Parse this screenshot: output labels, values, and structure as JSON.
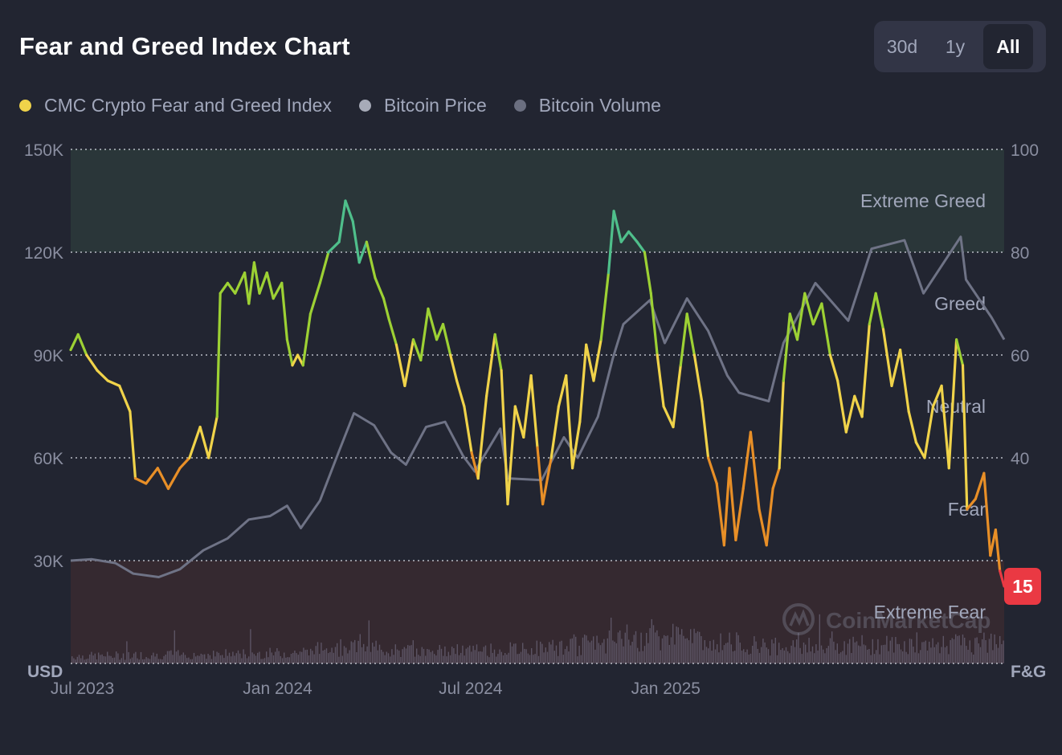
{
  "header": {
    "title": "Fear and Greed Index Chart"
  },
  "range_selector": [
    {
      "label": "30d",
      "active": false
    },
    {
      "label": "1y",
      "active": false
    },
    {
      "label": "All",
      "active": true
    }
  ],
  "legend": [
    {
      "label": "CMC Crypto Fear and Greed Index",
      "color": "#f0d34a"
    },
    {
      "label": "Bitcoin Price",
      "color": "#a7abb8"
    },
    {
      "label": "Bitcoin Volume",
      "color": "#6b6f80"
    }
  ],
  "watermark": "CoinMarketCap",
  "colors": {
    "background": "#222531",
    "extreme_greed_band": "#2a3639",
    "extreme_fear_band": "#352930",
    "extreme_greed": "#4fbf8b",
    "greed": "#9dd134",
    "neutral": "#f0d34a",
    "fear": "#e88f27",
    "extreme_fear": "#ea3943",
    "price_line": "#6f7386",
    "volume_bars": "#5c5464"
  },
  "chart_data": {
    "type": "line",
    "left_axis": {
      "unit_label": "USD",
      "ticks": [
        "150K",
        "120K",
        "90K",
        "60K",
        "30K"
      ],
      "ylim": [
        0,
        150000
      ]
    },
    "right_axis": {
      "unit_label": "F&G",
      "ticks": [
        "100",
        "80",
        "60",
        "40"
      ],
      "ylim": [
        0,
        100
      ]
    },
    "x_ticks": [
      "Jul 2023",
      "Jan 2024",
      "Jul 2024",
      "Jan 2025"
    ],
    "x_tick_dates": [
      "2023-07-01",
      "2024-01-01",
      "2024-07-01",
      "2025-01-01"
    ],
    "x_range": [
      "2023-06-20",
      "2025-11-16"
    ],
    "zones": [
      {
        "label": "Extreme Greed",
        "range": [
          80,
          100
        ]
      },
      {
        "label": "Greed",
        "range": [
          60,
          80
        ]
      },
      {
        "label": "Neutral",
        "range": [
          40,
          60
        ]
      },
      {
        "label": "Fear",
        "range": [
          20,
          40
        ]
      },
      {
        "label": "Extreme Fear",
        "range": [
          0,
          20
        ]
      }
    ],
    "current_value": "15",
    "grid": true,
    "series": [
      {
        "name": "CMC Crypto Fear and Greed Index",
        "axis": "right",
        "points": [
          [
            "2023-06-20",
            61
          ],
          [
            "2023-06-27",
            64
          ],
          [
            "2023-07-05",
            60
          ],
          [
            "2023-07-15",
            57
          ],
          [
            "2023-07-25",
            55
          ],
          [
            "2023-08-05",
            54
          ],
          [
            "2023-08-15",
            49
          ],
          [
            "2023-08-20",
            36
          ],
          [
            "2023-08-30",
            35
          ],
          [
            "2023-09-10",
            38
          ],
          [
            "2023-09-20",
            34
          ],
          [
            "2023-10-01",
            38
          ],
          [
            "2023-10-10",
            40
          ],
          [
            "2023-10-20",
            46
          ],
          [
            "2023-10-28",
            40
          ],
          [
            "2023-11-05",
            48
          ],
          [
            "2023-11-08",
            72
          ],
          [
            "2023-11-15",
            74
          ],
          [
            "2023-11-22",
            72
          ],
          [
            "2023-12-01",
            76
          ],
          [
            "2023-12-05",
            70
          ],
          [
            "2023-12-10",
            78
          ],
          [
            "2023-12-15",
            72
          ],
          [
            "2023-12-22",
            76
          ],
          [
            "2023-12-28",
            71
          ],
          [
            "2024-01-05",
            74
          ],
          [
            "2024-01-10",
            63
          ],
          [
            "2024-01-15",
            58
          ],
          [
            "2024-01-20",
            60
          ],
          [
            "2024-01-25",
            58
          ],
          [
            "2024-02-01",
            68
          ],
          [
            "2024-02-10",
            74
          ],
          [
            "2024-02-18",
            80
          ],
          [
            "2024-02-28",
            82
          ],
          [
            "2024-03-05",
            90
          ],
          [
            "2024-03-12",
            86
          ],
          [
            "2024-03-18",
            78
          ],
          [
            "2024-03-25",
            82
          ],
          [
            "2024-04-02",
            75
          ],
          [
            "2024-04-10",
            71
          ],
          [
            "2024-04-15",
            67
          ],
          [
            "2024-04-22",
            62
          ],
          [
            "2024-04-30",
            54
          ],
          [
            "2024-05-08",
            63
          ],
          [
            "2024-05-15",
            59
          ],
          [
            "2024-05-22",
            69
          ],
          [
            "2024-05-30",
            63
          ],
          [
            "2024-06-05",
            66
          ],
          [
            "2024-06-12",
            60
          ],
          [
            "2024-06-18",
            55
          ],
          [
            "2024-06-25",
            50
          ],
          [
            "2024-07-02",
            41
          ],
          [
            "2024-07-08",
            36
          ],
          [
            "2024-07-16",
            52
          ],
          [
            "2024-07-24",
            64
          ],
          [
            "2024-07-30",
            57
          ],
          [
            "2024-08-05",
            31
          ],
          [
            "2024-08-12",
            50
          ],
          [
            "2024-08-20",
            44
          ],
          [
            "2024-08-27",
            56
          ],
          [
            "2024-09-02",
            42
          ],
          [
            "2024-09-07",
            31
          ],
          [
            "2024-09-15",
            40
          ],
          [
            "2024-09-22",
            50
          ],
          [
            "2024-09-29",
            56
          ],
          [
            "2024-10-05",
            38
          ],
          [
            "2024-10-12",
            47
          ],
          [
            "2024-10-18",
            62
          ],
          [
            "2024-10-25",
            55
          ],
          [
            "2024-11-01",
            63
          ],
          [
            "2024-11-08",
            76
          ],
          [
            "2024-11-13",
            88
          ],
          [
            "2024-11-20",
            82
          ],
          [
            "2024-11-27",
            84
          ],
          [
            "2024-12-05",
            82
          ],
          [
            "2024-12-12",
            80
          ],
          [
            "2024-12-18",
            72
          ],
          [
            "2024-12-24",
            60
          ],
          [
            "2024-12-30",
            50
          ],
          [
            "2025-01-08",
            46
          ],
          [
            "2025-01-15",
            58
          ],
          [
            "2025-01-21",
            68
          ],
          [
            "2025-01-28",
            60
          ],
          [
            "2025-02-04",
            51
          ],
          [
            "2025-02-10",
            40
          ],
          [
            "2025-02-18",
            35
          ],
          [
            "2025-02-25",
            23
          ],
          [
            "2025-03-02",
            38
          ],
          [
            "2025-03-08",
            24
          ],
          [
            "2025-03-15",
            34
          ],
          [
            "2025-03-22",
            45
          ],
          [
            "2025-03-30",
            30
          ],
          [
            "2025-04-06",
            23
          ],
          [
            "2025-04-12",
            34
          ],
          [
            "2025-04-18",
            38
          ],
          [
            "2025-04-22",
            55
          ],
          [
            "2025-04-28",
            68
          ],
          [
            "2025-05-05",
            63
          ],
          [
            "2025-05-12",
            72
          ],
          [
            "2025-05-20",
            66
          ],
          [
            "2025-05-28",
            70
          ],
          [
            "2025-06-05",
            60
          ],
          [
            "2025-06-12",
            55
          ],
          [
            "2025-06-20",
            45
          ],
          [
            "2025-06-28",
            52
          ],
          [
            "2025-07-05",
            48
          ],
          [
            "2025-07-12",
            66
          ],
          [
            "2025-07-18",
            72
          ],
          [
            "2025-07-25",
            65
          ],
          [
            "2025-08-02",
            54
          ],
          [
            "2025-08-10",
            61
          ],
          [
            "2025-08-18",
            49
          ],
          [
            "2025-08-25",
            43
          ],
          [
            "2025-09-02",
            40
          ],
          [
            "2025-09-10",
            50
          ],
          [
            "2025-09-18",
            54
          ],
          [
            "2025-09-25",
            38
          ],
          [
            "2025-10-02",
            63
          ],
          [
            "2025-10-08",
            58
          ],
          [
            "2025-10-12",
            30
          ],
          [
            "2025-10-20",
            32
          ],
          [
            "2025-10-28",
            37
          ],
          [
            "2025-11-03",
            21
          ],
          [
            "2025-11-08",
            26
          ],
          [
            "2025-11-12",
            18
          ],
          [
            "2025-11-16",
            15
          ]
        ]
      },
      {
        "name": "Bitcoin Price",
        "axis": "left",
        "points": [
          [
            "2023-06-20",
            30000
          ],
          [
            "2023-07-10",
            30400
          ],
          [
            "2023-08-01",
            29300
          ],
          [
            "2023-08-18",
            26200
          ],
          [
            "2023-09-11",
            25200
          ],
          [
            "2023-10-01",
            27500
          ],
          [
            "2023-10-23",
            33000
          ],
          [
            "2023-11-15",
            36500
          ],
          [
            "2023-12-05",
            42000
          ],
          [
            "2023-12-25",
            43000
          ],
          [
            "2024-01-10",
            46000
          ],
          [
            "2024-01-23",
            39500
          ],
          [
            "2024-02-10",
            47500
          ],
          [
            "2024-02-28",
            62000
          ],
          [
            "2024-03-13",
            73000
          ],
          [
            "2024-04-01",
            69500
          ],
          [
            "2024-04-17",
            61500
          ],
          [
            "2024-05-01",
            58000
          ],
          [
            "2024-05-20",
            69000
          ],
          [
            "2024-06-07",
            70500
          ],
          [
            "2024-06-24",
            60500
          ],
          [
            "2024-07-05",
            56000
          ],
          [
            "2024-07-29",
            68500
          ],
          [
            "2024-08-05",
            54000
          ],
          [
            "2024-09-06",
            53500
          ],
          [
            "2024-09-27",
            66000
          ],
          [
            "2024-10-10",
            60000
          ],
          [
            "2024-10-29",
            72000
          ],
          [
            "2024-11-12",
            89000
          ],
          [
            "2024-11-22",
            99000
          ],
          [
            "2024-12-17",
            106000
          ],
          [
            "2024-12-31",
            93500
          ],
          [
            "2025-01-21",
            106500
          ],
          [
            "2025-02-10",
            97000
          ],
          [
            "2025-02-28",
            84000
          ],
          [
            "2025-03-11",
            79000
          ],
          [
            "2025-04-08",
            76500
          ],
          [
            "2025-04-22",
            93500
          ],
          [
            "2025-05-22",
            111000
          ],
          [
            "2025-06-22",
            100000
          ],
          [
            "2025-07-14",
            121000
          ],
          [
            "2025-08-14",
            123500
          ],
          [
            "2025-09-01",
            108000
          ],
          [
            "2025-10-06",
            124500
          ],
          [
            "2025-10-11",
            112000
          ],
          [
            "2025-11-04",
            101000
          ],
          [
            "2025-11-16",
            94500
          ]
        ]
      }
    ]
  }
}
